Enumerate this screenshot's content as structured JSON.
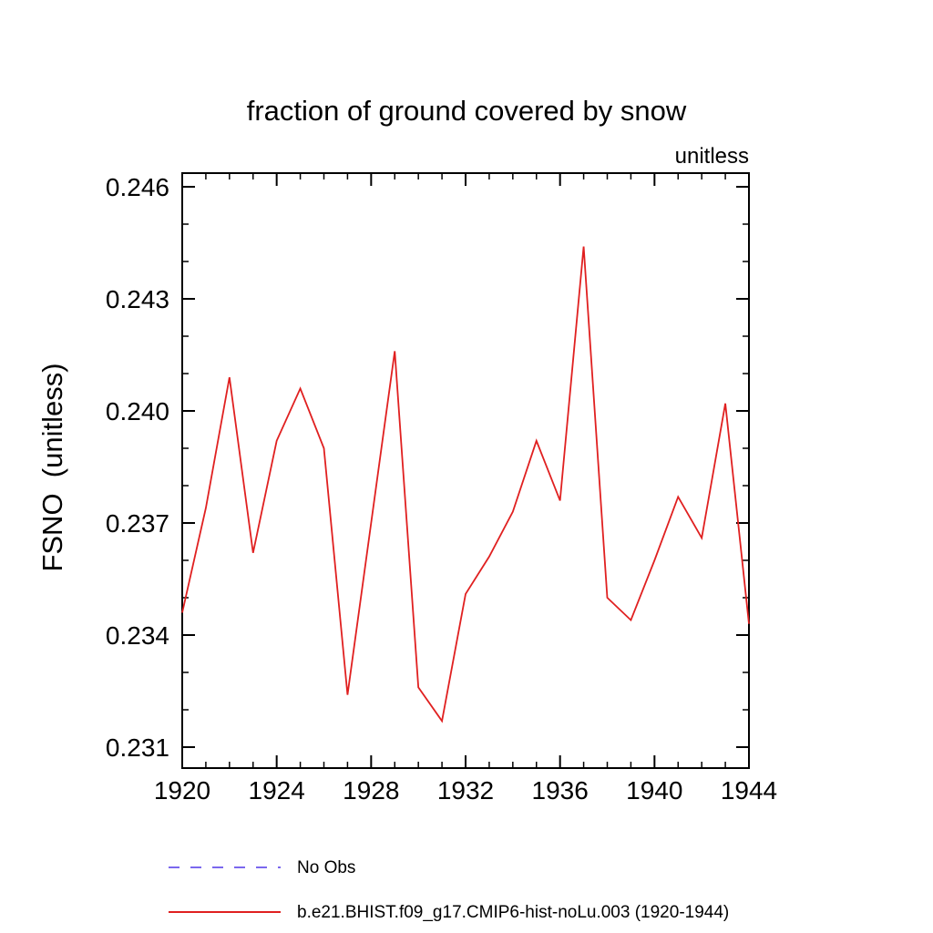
{
  "window": {
    "background": "#ffffff",
    "text_color": "#000000"
  },
  "chart_data": {
    "type": "line",
    "title": "fraction of ground covered by snow",
    "units_label": "unitless",
    "ylabel": "FSNO  (unitless)",
    "xlabel": "",
    "xlim": [
      1920,
      1944
    ],
    "ylim": [
      0.231,
      0.246
    ],
    "xticks": [
      1920,
      1924,
      1928,
      1932,
      1936,
      1940,
      1944
    ],
    "x_minor_step": 1,
    "yticks": [
      0.231,
      0.234,
      0.237,
      0.24,
      0.243,
      0.246
    ],
    "ytick_labels": [
      "0.231",
      "0.234",
      "0.237",
      "0.240",
      "0.243",
      "0.246"
    ],
    "y_minor_step": 0.001,
    "grid": false,
    "legend_position": "bottom-left",
    "x": [
      1920,
      1921,
      1922,
      1923,
      1924,
      1925,
      1926,
      1927,
      1928,
      1929,
      1930,
      1931,
      1932,
      1933,
      1934,
      1935,
      1936,
      1937,
      1938,
      1939,
      1940,
      1941,
      1942,
      1943,
      1944
    ],
    "series": [
      {
        "name": "No Obs",
        "color": "#7b68ee",
        "line_style": "dashed",
        "values": []
      },
      {
        "name": "b.e21.BHIST.f09_g17.CMIP6-hist-noLu.003 (1920-1944)",
        "color": "#e02020",
        "line_style": "solid",
        "values": [
          0.2346,
          0.2374,
          0.2409,
          0.2362,
          0.2392,
          0.2406,
          0.239,
          0.2324,
          0.237,
          0.2416,
          0.2326,
          0.2317,
          0.2351,
          0.2361,
          0.2373,
          0.2392,
          0.2376,
          0.2444,
          0.235,
          0.2344,
          0.236,
          0.2377,
          0.2366,
          0.2402,
          0.2343
        ]
      }
    ]
  }
}
